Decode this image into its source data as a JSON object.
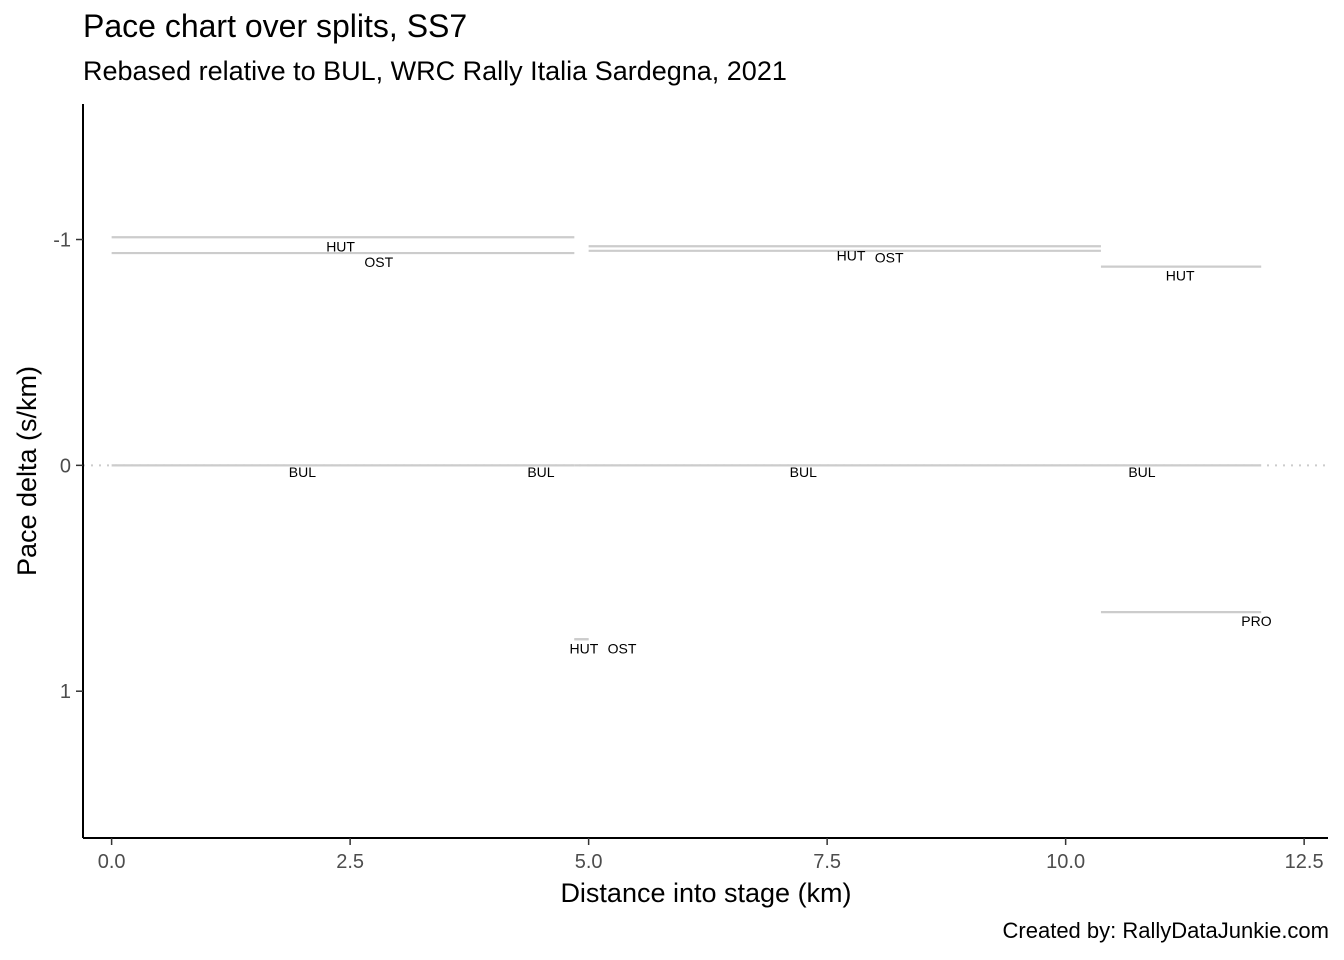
{
  "title": "Pace chart over splits, SS7",
  "subtitle": "Rebased relative to BUL, WRC Rally Italia Sardegna, 2021",
  "caption": "Created by: RallyDataJunkie.com",
  "chart_data": {
    "type": "line",
    "xlabel": "Distance into stage (km)",
    "ylabel": "Pace delta (s/km)",
    "xlim": [
      -0.3,
      12.75
    ],
    "ylim": [
      1.65,
      -1.6
    ],
    "y_reversed": true,
    "xticks": [
      0,
      2.5,
      5,
      7.5,
      10,
      12.5
    ],
    "xtick_labels": [
      "0.0",
      "2.5",
      "5.0",
      "7.5",
      "10.0",
      "12.5"
    ],
    "yticks": [
      -1,
      0,
      1
    ],
    "ytick_labels": [
      "-1",
      "0",
      "1"
    ],
    "reference_line": {
      "y": 0,
      "style": "dotted"
    },
    "grid": false,
    "line_color": "#cccccc",
    "segments": [
      {
        "driver": "HUT",
        "x_start": 0.0,
        "x_end": 4.85,
        "pace_delta": -1.01,
        "label_x": 2.4,
        "label_y": -0.97
      },
      {
        "driver": "OST",
        "x_start": 0.0,
        "x_end": 4.85,
        "pace_delta": -0.94,
        "label_x": 2.8,
        "label_y": -0.9
      },
      {
        "driver": "BUL",
        "x_start": 0.0,
        "x_end": 4.85,
        "pace_delta": 0.0,
        "label_x": 2.0,
        "label_y": 0.03
      },
      {
        "driver": "HUT",
        "x_start": 4.85,
        "x_end": 5.0,
        "pace_delta": 0.77,
        "label_x": 4.95,
        "label_y": 0.81
      },
      {
        "driver": "OST",
        "x_start": 4.85,
        "x_end": 5.0,
        "pace_delta": 0.77,
        "label_x": 5.35,
        "label_y": 0.81
      },
      {
        "driver": "BUL",
        "x_start": 4.85,
        "x_end": 5.0,
        "pace_delta": 0.0,
        "label_x": 4.5,
        "label_y": 0.03
      },
      {
        "driver": "HUT",
        "x_start": 5.0,
        "x_end": 10.37,
        "pace_delta": -0.97,
        "label_x": 7.75,
        "label_y": -0.93
      },
      {
        "driver": "OST",
        "x_start": 5.0,
        "x_end": 10.37,
        "pace_delta": -0.95,
        "label_x": 8.15,
        "label_y": -0.92
      },
      {
        "driver": "BUL",
        "x_start": 5.0,
        "x_end": 10.37,
        "pace_delta": 0.0,
        "label_x": 7.25,
        "label_y": 0.03
      },
      {
        "driver": "HUT",
        "x_start": 10.37,
        "x_end": 12.05,
        "pace_delta": -0.88,
        "label_x": 11.2,
        "label_y": -0.84
      },
      {
        "driver": "BUL",
        "x_start": 10.37,
        "x_end": 12.05,
        "pace_delta": 0.0,
        "label_x": 10.8,
        "label_y": 0.03
      },
      {
        "driver": "PRO",
        "x_start": 10.37,
        "x_end": 12.05,
        "pace_delta": 0.65,
        "label_x": 12.0,
        "label_y": 0.69
      }
    ]
  }
}
